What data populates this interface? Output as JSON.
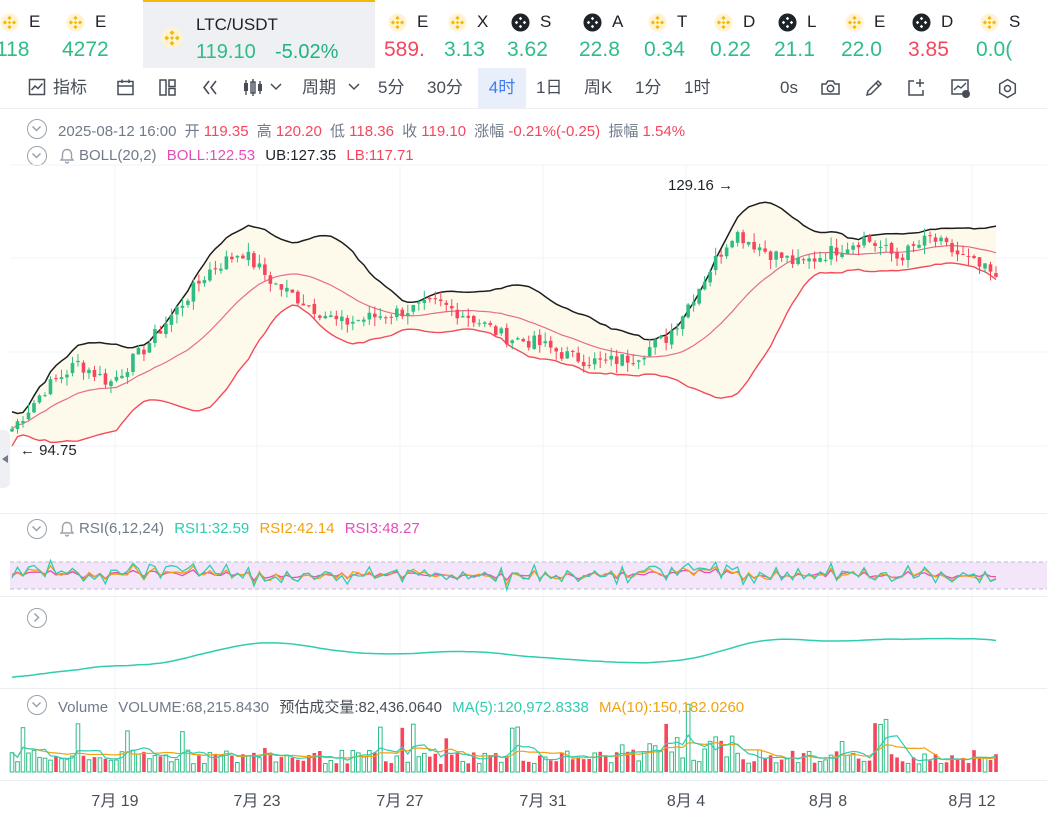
{
  "tickers": [
    {
      "sym": "E",
      "price": "118",
      "dir": "up",
      "icon": "bnb-icon"
    },
    {
      "sym": "E",
      "price": "4272",
      "dir": "up",
      "icon": "bnb-icon"
    },
    {
      "sym": "LTC/USDT",
      "price": "119.10",
      "change": "-5.02%",
      "dir": "up",
      "icon": "bnb-icon",
      "active": true
    },
    {
      "sym": "E",
      "price": "589.",
      "dir": "dn",
      "icon": "bnb-icon"
    },
    {
      "sym": "X",
      "price": "3.13",
      "dir": "up",
      "icon": "bnb-icon"
    },
    {
      "sym": "S",
      "price": "3.62",
      "dir": "up",
      "icon": "binance-alpha-icon"
    },
    {
      "sym": "A",
      "price": "22.8",
      "dir": "up",
      "icon": "binance-alpha-icon"
    },
    {
      "sym": "T",
      "price": "0.34",
      "dir": "up",
      "icon": "bnb-icon"
    },
    {
      "sym": "D",
      "price": "0.22",
      "dir": "up",
      "icon": "bnb-icon"
    },
    {
      "sym": "L",
      "price": "21.1",
      "dir": "up",
      "icon": "binance-alpha-icon"
    },
    {
      "sym": "E",
      "price": "22.0",
      "dir": "up",
      "icon": "bnb-icon"
    },
    {
      "sym": "D",
      "price": "3.85",
      "dir": "dn",
      "icon": "binance-alpha-icon"
    },
    {
      "sym": "S",
      "price": "0.0(",
      "dir": "up",
      "icon": "bnb-icon"
    }
  ],
  "toolbar": {
    "indicators": "指标",
    "period": "周期",
    "intervals": [
      "5分",
      "30分",
      "4时",
      "1日",
      "周K",
      "1分",
      "1时"
    ],
    "selected_interval": "4时",
    "countdown": "0s"
  },
  "ohlc": {
    "date": "2025-08-12 16:00",
    "open_label": "开",
    "open": "119.35",
    "high_label": "高",
    "high": "120.20",
    "low_label": "低",
    "low": "118.36",
    "close_label": "收",
    "close": "119.10",
    "change_label": "涨幅",
    "change": "-0.21%(-0.25)",
    "amp_label": "振幅",
    "amplitude": "1.54%"
  },
  "boll": {
    "label": "BOLL(20,2)",
    "boll": "BOLL:122.53",
    "ub": "UB:127.35",
    "lb": "LB:117.71"
  },
  "markers": {
    "high": "129.16",
    "low": "94.75"
  },
  "rsi": {
    "label": "RSI(6,12,24)",
    "rsi1": "RSI1:32.59",
    "rsi2": "RSI2:42.14",
    "rsi3": "RSI3:48.27"
  },
  "volume": {
    "label": "Volume",
    "volume": "VOLUME:68,215.8430",
    "estimate": "预估成交量:82,436.0640",
    "ma5": "MA(5):120,972.8338",
    "ma10": "MA(10):150,182.0260"
  },
  "x_axis": [
    "7月 19",
    "7月 23",
    "7月 27",
    "7月 31",
    "8月 4",
    "8月 8",
    "8月 12"
  ],
  "colors": {
    "up": "#2ebd85",
    "down": "#f6465d",
    "upper_band": "#1e1e1e",
    "mid_band": "#e76b8a",
    "lower_band": "#f24b5b",
    "band_fill": "#fefaeb",
    "rsi1": "#2fcdb0",
    "rsi2": "#f2a20e",
    "rsi3": "#e64db9",
    "rsi_zone": "#f3e6fb",
    "accent": "#3d7bf4"
  },
  "chart_data": {
    "type": "candlestick",
    "title": "LTC/USDT",
    "interval": "4时",
    "x_categories": [
      "7月 19",
      "7月 23",
      "7月 27",
      "7月 31",
      "8月 4",
      "8月 8",
      "8月 12"
    ],
    "close_path": [
      [
        "2025-07-17",
        96
      ],
      [
        "2025-07-18",
        102
      ],
      [
        "2025-07-18",
        106
      ],
      [
        "2025-07-19",
        103
      ],
      [
        "2025-07-20",
        108
      ],
      [
        "2025-07-21",
        114
      ],
      [
        "2025-07-22",
        120
      ],
      [
        "2025-07-22",
        123
      ],
      [
        "2025-07-23",
        118
      ],
      [
        "2025-07-24",
        115
      ],
      [
        "2025-07-25",
        112
      ],
      [
        "2025-07-26",
        113
      ],
      [
        "2025-07-27",
        114
      ],
      [
        "2025-07-28",
        115
      ],
      [
        "2025-07-29",
        113
      ],
      [
        "2025-07-30",
        110
      ],
      [
        "2025-07-31",
        109
      ],
      [
        "2025-08-01",
        107
      ],
      [
        "2025-08-02",
        106
      ],
      [
        "2025-08-03",
        107
      ],
      [
        "2025-08-04",
        110
      ],
      [
        "2025-08-05",
        118
      ],
      [
        "2025-08-05",
        126
      ],
      [
        "2025-08-06",
        123
      ],
      [
        "2025-08-07",
        121
      ],
      [
        "2025-08-08",
        123
      ],
      [
        "2025-08-09",
        125
      ],
      [
        "2025-08-10",
        122
      ],
      [
        "2025-08-11",
        125
      ],
      [
        "2025-08-12",
        122
      ],
      [
        "2025-08-12",
        119.1
      ]
    ],
    "marked_high": 129.16,
    "marked_low": 94.75,
    "boll_last": {
      "mid": 122.53,
      "upper": 127.35,
      "lower": 117.71
    },
    "rsi_last": {
      "rsi6": 32.59,
      "rsi12": 42.14,
      "rsi24": 48.27
    },
    "volume_last": 68215.843,
    "volume_estimate": 82436.064,
    "volume_ma5": 120972.8338,
    "volume_ma10": 150182.026
  }
}
